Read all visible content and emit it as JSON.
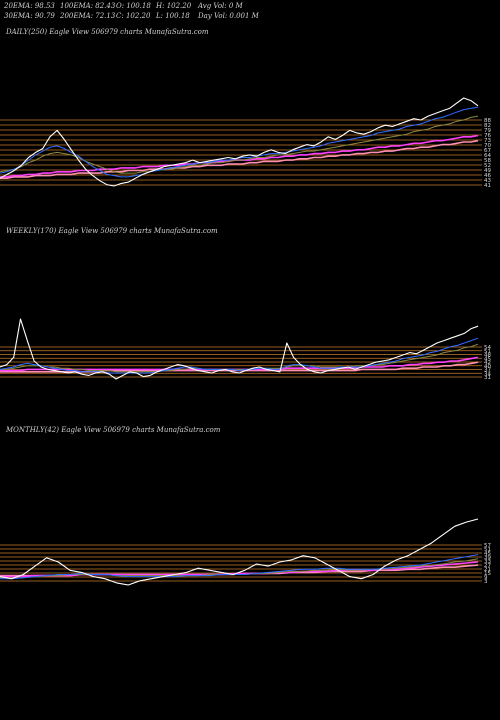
{
  "header": {
    "row1": [
      "20EMA: 98.53",
      "100EMA: 82.43",
      "O: 100.18",
      "H: 102.20",
      "Avg Vol: 0  M"
    ],
    "row2": [
      "30EMA: 90.79",
      "200EMA: 72.13",
      "C: 102.20",
      "L: 100.18",
      "Day Vol: 0.001 M"
    ]
  },
  "colors": {
    "background": "#000000",
    "price": "#ffffff",
    "ema_blue": "#2e6cff",
    "ema_magenta": "#ff40ff",
    "ema_pink": "#ff8fb0",
    "ema_olive": "#8a8a40",
    "level_lines": "#c8782a"
  },
  "chart_data": [
    {
      "type": "line",
      "title": "DAILY(250) Eagle  View  506979 charts MunafaSutra.com",
      "x_count": 250,
      "y_ticks": [
        "88",
        "82",
        "79",
        "76",
        "73",
        "70",
        "67",
        "64",
        "58",
        "52",
        "49",
        "46",
        "43",
        "41"
      ],
      "series": [
        {
          "role": "price",
          "color": "#ffffff",
          "values": [
            38,
            41,
            44,
            48,
            54,
            58,
            61,
            70,
            75,
            68,
            60,
            52,
            45,
            40,
            36,
            33,
            32,
            34,
            35,
            38,
            41,
            43,
            45,
            47,
            48,
            49,
            50,
            52,
            50,
            51,
            52,
            53,
            54,
            53,
            55,
            56,
            55,
            58,
            60,
            58,
            57,
            60,
            62,
            64,
            63,
            66,
            70,
            68,
            71,
            75,
            73,
            72,
            74,
            77,
            79,
            78,
            80,
            82,
            84,
            83,
            86,
            88,
            90,
            92,
            96,
            100,
            98,
            94
          ]
        },
        {
          "role": "ema20",
          "color": "#2e6cff",
          "values": [
            42,
            43,
            45,
            48,
            52,
            56,
            59,
            62,
            63,
            61,
            58,
            55,
            51,
            47,
            44,
            41,
            40,
            39,
            39,
            40,
            41,
            43,
            44,
            45,
            46,
            47,
            48,
            49,
            50,
            50,
            51,
            52,
            52,
            53,
            54,
            54,
            55,
            56,
            57,
            57,
            58,
            59,
            60,
            61,
            62,
            63,
            65,
            66,
            67,
            68,
            69,
            70,
            71,
            73,
            74,
            75,
            76,
            78,
            79,
            80,
            82,
            84,
            85,
            87,
            89,
            91,
            92,
            93
          ]
        },
        {
          "role": "ema30",
          "color": "#8a8a40",
          "values": [
            43,
            44,
            45,
            47,
            50,
            52,
            55,
            57,
            58,
            57,
            56,
            54,
            51,
            49,
            47,
            45,
            43,
            42,
            42,
            42,
            43,
            43,
            44,
            45,
            45,
            46,
            47,
            48,
            48,
            49,
            50,
            50,
            51,
            52,
            52,
            53,
            54,
            54,
            55,
            56,
            56,
            57,
            58,
            59,
            59,
            60,
            61,
            62,
            63,
            64,
            65,
            66,
            67,
            68,
            69,
            70,
            71,
            72,
            74,
            75,
            76,
            78,
            79,
            80,
            82,
            83,
            85,
            86
          ]
        },
        {
          "role": "ema100",
          "color": "#ff40ff",
          "values": [
            39,
            39,
            40,
            40,
            41,
            41,
            42,
            42,
            43,
            43,
            43,
            44,
            44,
            44,
            45,
            45,
            45,
            46,
            46,
            46,
            47,
            47,
            47,
            48,
            48,
            48,
            49,
            49,
            50,
            50,
            50,
            51,
            51,
            52,
            52,
            52,
            53,
            53,
            54,
            54,
            55,
            55,
            56,
            56,
            57,
            57,
            58,
            58,
            59,
            59,
            60,
            60,
            61,
            62,
            62,
            63,
            63,
            64,
            65,
            65,
            66,
            67,
            67,
            68,
            69,
            70,
            70,
            71
          ]
        },
        {
          "role": "ema200",
          "color": "#ff8fb0",
          "values": [
            38,
            38,
            39,
            39,
            39,
            40,
            40,
            40,
            41,
            41,
            41,
            42,
            42,
            42,
            42,
            43,
            43,
            43,
            44,
            44,
            44,
            45,
            45,
            45,
            46,
            46,
            46,
            47,
            47,
            48,
            48,
            48,
            49,
            49,
            49,
            50,
            50,
            51,
            51,
            51,
            52,
            52,
            53,
            53,
            54,
            54,
            55,
            55,
            56,
            56,
            57,
            57,
            58,
            58,
            59,
            59,
            60,
            61,
            61,
            62,
            62,
            63,
            64,
            64,
            65,
            66,
            66,
            67
          ]
        }
      ]
    },
    {
      "type": "line",
      "title": "WEEKLY(170) Eagle  View  506979 charts MunafaSutra.com",
      "x_count": 170,
      "y_ticks": [
        "54",
        "51",
        "48",
        "45",
        "42",
        "40",
        "37",
        "34",
        "31"
      ],
      "series": [
        {
          "role": "price",
          "color": "#ffffff",
          "values": [
            40,
            42,
            48,
            80,
            62,
            45,
            40,
            38,
            37,
            36,
            35,
            36,
            34,
            33,
            35,
            36,
            34,
            30,
            33,
            36,
            35,
            32,
            33,
            36,
            38,
            40,
            42,
            41,
            39,
            37,
            36,
            35,
            37,
            38,
            36,
            35,
            37,
            39,
            40,
            38,
            37,
            36,
            60,
            48,
            42,
            38,
            36,
            35,
            37,
            38,
            39,
            40,
            38,
            40,
            42,
            44,
            45,
            46,
            48,
            50,
            52,
            51,
            54,
            57,
            60,
            62,
            64,
            66,
            68,
            72,
            74
          ]
        },
        {
          "role": "ema20",
          "color": "#2e6cff",
          "values": [
            38,
            39,
            40,
            42,
            43,
            42,
            41,
            40,
            39,
            38,
            37,
            37,
            36,
            36,
            36,
            36,
            35,
            35,
            35,
            35,
            35,
            35,
            35,
            36,
            37,
            38,
            39,
            40,
            40,
            39,
            38,
            38,
            38,
            38,
            38,
            37,
            38,
            38,
            39,
            39,
            38,
            38,
            41,
            42,
            42,
            41,
            40,
            39,
            39,
            39,
            40,
            40,
            40,
            40,
            41,
            42,
            43,
            44,
            45,
            47,
            48,
            49,
            50,
            52,
            53,
            55,
            57,
            58,
            60,
            62,
            64
          ]
        },
        {
          "role": "ema30",
          "color": "#8a8a40",
          "values": [
            38,
            38,
            39,
            40,
            41,
            41,
            41,
            40,
            40,
            39,
            39,
            38,
            38,
            37,
            37,
            37,
            37,
            36,
            36,
            36,
            36,
            36,
            36,
            36,
            37,
            37,
            38,
            38,
            39,
            39,
            38,
            38,
            38,
            38,
            38,
            38,
            38,
            38,
            39,
            39,
            39,
            39,
            40,
            41,
            41,
            41,
            41,
            40,
            40,
            40,
            40,
            40,
            41,
            41,
            41,
            42,
            42,
            43,
            44,
            45,
            46,
            47,
            48,
            49,
            50,
            52,
            53,
            54,
            56,
            57,
            59
          ]
        },
        {
          "role": "ema100",
          "color": "#ff40ff",
          "values": [
            37,
            37,
            37,
            37,
            38,
            38,
            38,
            38,
            38,
            38,
            38,
            38,
            38,
            38,
            38,
            38,
            38,
            38,
            38,
            38,
            38,
            38,
            38,
            38,
            38,
            38,
            38,
            38,
            38,
            38,
            38,
            38,
            38,
            38,
            38,
            38,
            38,
            38,
            38,
            38,
            38,
            38,
            39,
            39,
            39,
            39,
            39,
            39,
            39,
            39,
            39,
            39,
            39,
            40,
            40,
            40,
            40,
            41,
            41,
            41,
            42,
            42,
            43,
            43,
            44,
            44,
            45,
            45,
            46,
            47,
            48
          ]
        },
        {
          "role": "ema200",
          "color": "#ff8fb0",
          "values": [
            36,
            36,
            36,
            36,
            36,
            36,
            36,
            36,
            36,
            36,
            36,
            36,
            36,
            36,
            36,
            37,
            37,
            37,
            37,
            37,
            37,
            37,
            37,
            37,
            37,
            37,
            37,
            37,
            37,
            37,
            37,
            37,
            37,
            37,
            37,
            37,
            37,
            37,
            37,
            37,
            37,
            37,
            37,
            37,
            37,
            37,
            37,
            37,
            37,
            37,
            37,
            37,
            37,
            38,
            38,
            38,
            38,
            38,
            38,
            39,
            39,
            39,
            40,
            40,
            40,
            41,
            41,
            42,
            42,
            43,
            44
          ]
        }
      ]
    },
    {
      "type": "line",
      "title": "MONTHLY(42) Eagle  View  506979 charts MunafaSutra.com",
      "x_count": 42,
      "y_ticks": [
        "57",
        "51",
        "45",
        "39",
        "33",
        "27",
        "21",
        "15",
        "9",
        "3"
      ],
      "series": [
        {
          "role": "price",
          "color": "#ffffff",
          "values": [
            30,
            28,
            32,
            40,
            48,
            44,
            36,
            34,
            30,
            28,
            24,
            22,
            26,
            28,
            30,
            32,
            34,
            38,
            36,
            34,
            32,
            36,
            42,
            40,
            44,
            46,
            50,
            48,
            42,
            36,
            30,
            28,
            32,
            40,
            46,
            50,
            56,
            62,
            70,
            78,
            82,
            85
          ]
        },
        {
          "role": "ema20",
          "color": "#2e6cff",
          "values": [
            28,
            28,
            29,
            30,
            31,
            32,
            32,
            33,
            32,
            32,
            31,
            30,
            30,
            30,
            30,
            30,
            31,
            31,
            31,
            32,
            32,
            32,
            33,
            34,
            35,
            36,
            37,
            37,
            38,
            38,
            37,
            37,
            37,
            38,
            39,
            40,
            41,
            43,
            45,
            47,
            49,
            51
          ]
        },
        {
          "role": "ema30",
          "color": "#8a8a40",
          "values": [
            29,
            29,
            29,
            30,
            31,
            31,
            32,
            32,
            32,
            32,
            31,
            31,
            31,
            31,
            31,
            31,
            31,
            31,
            32,
            32,
            32,
            32,
            33,
            33,
            34,
            35,
            35,
            36,
            36,
            37,
            36,
            36,
            37,
            37,
            38,
            39,
            40,
            41,
            42,
            44,
            45,
            47
          ]
        },
        {
          "role": "ema100",
          "color": "#ff40ff",
          "values": [
            30,
            30,
            30,
            31,
            31,
            31,
            31,
            32,
            32,
            32,
            32,
            32,
            32,
            32,
            32,
            32,
            32,
            32,
            32,
            32,
            33,
            33,
            33,
            33,
            34,
            34,
            35,
            35,
            35,
            36,
            36,
            36,
            36,
            37,
            37,
            38,
            39,
            40,
            41,
            42,
            43,
            44
          ]
        },
        {
          "role": "ema200",
          "color": "#ff8fb0",
          "values": [
            31,
            31,
            31,
            31,
            31,
            31,
            31,
            32,
            32,
            32,
            32,
            32,
            32,
            32,
            32,
            32,
            32,
            32,
            32,
            32,
            32,
            33,
            33,
            33,
            33,
            34,
            34,
            34,
            35,
            35,
            35,
            35,
            36,
            36,
            36,
            37,
            37,
            38,
            39,
            39,
            40,
            41
          ]
        }
      ]
    }
  ]
}
